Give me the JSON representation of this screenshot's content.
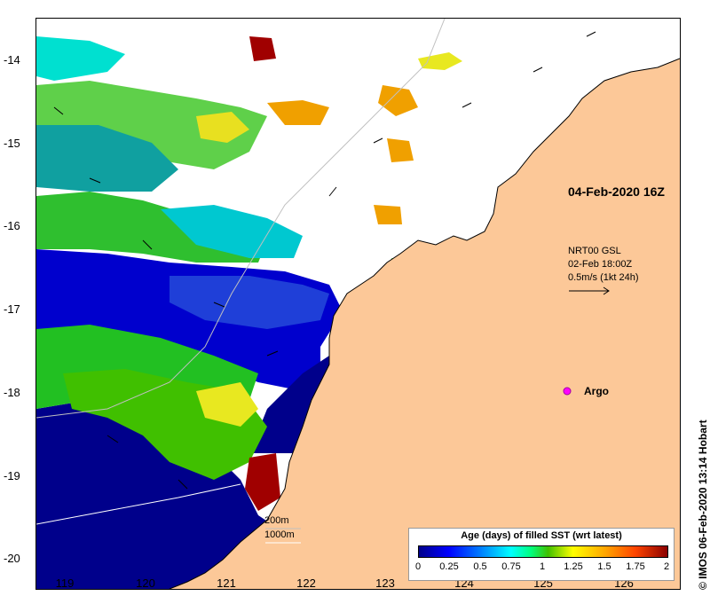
{
  "map": {
    "land_color": "#fcc898",
    "no_data_color": "#ffffff",
    "lat_ticks": [
      "-14",
      "-15",
      "-16",
      "-17",
      "-18",
      "-19",
      "-20"
    ],
    "lon_ticks": [
      "119",
      "120",
      "121",
      "122",
      "123",
      "124",
      "125",
      "126"
    ]
  },
  "annotations": {
    "datestamp": "04-Feb-2020 16Z",
    "nrt_line1": "NRT00 GSL",
    "nrt_line2": "02-Feb 18:00Z",
    "nrt_line3": "0.5m/s (1kt 24h)",
    "argo_label": "Argo",
    "isobath_200": "200m",
    "isobath_1000": "1000m"
  },
  "colorbar": {
    "title": "Age (days) of filled SST (wrt latest)",
    "ticks": [
      "0",
      "0.25",
      "0.5",
      "0.75",
      "1",
      "1.25",
      "1.5",
      "1.75",
      "2"
    ]
  },
  "copyright": "© IMOS 06-Feb-2020 13:14 Hobart"
}
